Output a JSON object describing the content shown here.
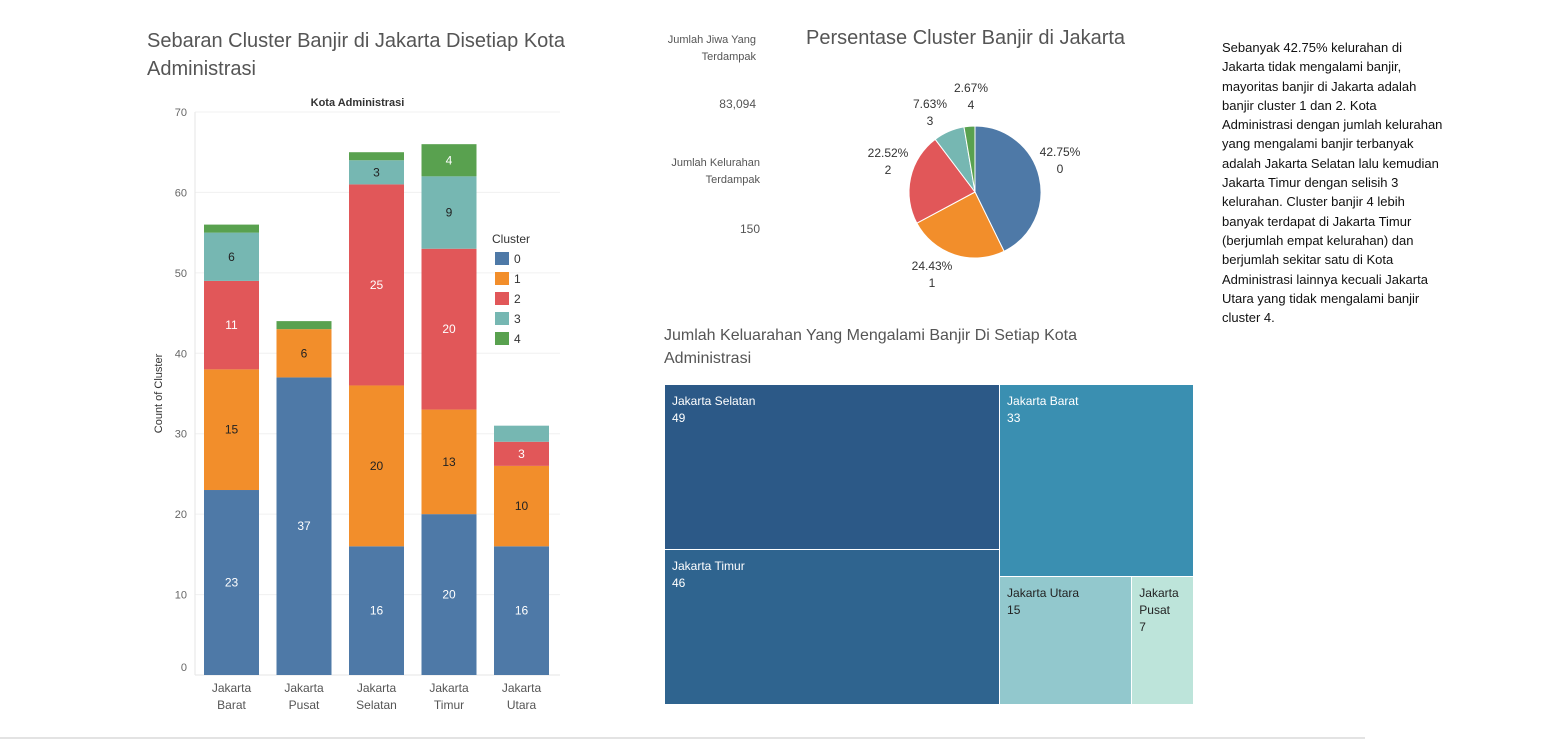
{
  "bar_title": "Sebaran Cluster Banjir di Jakarta Disetiap Kota Administrasi",
  "pie_title": "Persentase Cluster Banjir di Jakarta",
  "treemap_title": "Jumlah Keluarahan Yang Mengalami Banjir  Di Setiap Kota Administrasi",
  "kpis": {
    "jiwa_label": "Jumlah Jiwa Yang Terdampak",
    "jiwa_value": "83,094",
    "kelurahan_label": "Jumlah Kelurahan Terdampak",
    "kelurahan_value": "150"
  },
  "note": "Sebanyak 42.75% kelurahan di Jakarta tidak mengalami banjir, mayoritas banjir di Jakarta adalah banjir cluster 1 dan 2. Kota Administrasi dengan jumlah kelurahan yang mengalami banjir terbanyak adalah Jakarta Selatan lalu kemudian Jakarta Timur dengan selisih 3 kelurahan. Cluster banjir 4 lebih banyak terdapat di Jakarta Timur (berjumlah empat kelurahan) dan berjumlah sekitar satu di Kota Administrasi lainnya kecuali Jakarta Utara yang tidak mengalami banjir cluster 4.",
  "colors": {
    "0": "#4e79a7",
    "1": "#f28e2b",
    "2": "#e15759",
    "3": "#76b7b2",
    "4": "#59a14f"
  },
  "chart_data": [
    {
      "type": "bar",
      "stacked": true,
      "title": "Sebaran Cluster Banjir di Jakarta Disetiap Kota Administrasi",
      "header": "Kota Administrasi",
      "ylabel": "Count of Cluster",
      "ylim": [
        0,
        70
      ],
      "yticks": [
        0,
        10,
        20,
        30,
        40,
        50,
        60,
        70
      ],
      "legend_title": "Cluster",
      "legend_position": "right",
      "categories": [
        [
          "Jakarta",
          "Barat"
        ],
        [
          "Jakarta",
          "Pusat"
        ],
        [
          "Jakarta",
          "Selatan"
        ],
        [
          "Jakarta",
          "Timur"
        ],
        [
          "Jakarta",
          "Utara"
        ]
      ],
      "series": [
        {
          "name": "0",
          "values": [
            23,
            37,
            16,
            20,
            16
          ]
        },
        {
          "name": "1",
          "values": [
            15,
            6,
            20,
            13,
            10
          ]
        },
        {
          "name": "2",
          "values": [
            11,
            0,
            25,
            20,
            3
          ]
        },
        {
          "name": "3",
          "values": [
            6,
            0,
            3,
            9,
            2
          ]
        },
        {
          "name": "4",
          "values": [
            1,
            1,
            1,
            4,
            0
          ]
        }
      ],
      "labels": [
        [
          "23",
          "37",
          "16",
          "20",
          "16"
        ],
        [
          "15",
          "6",
          "20",
          "13",
          "10"
        ],
        [
          "11",
          "",
          "25",
          "20",
          "3"
        ],
        [
          "6",
          "",
          "3",
          "9",
          ""
        ],
        [
          "",
          "",
          "",
          "4",
          ""
        ]
      ]
    },
    {
      "type": "pie",
      "title": "Persentase Cluster Banjir di Jakarta",
      "slices": [
        {
          "cluster": "0",
          "percent": 42.75,
          "pct_label": "42.75%"
        },
        {
          "cluster": "1",
          "percent": 24.43,
          "pct_label": "24.43%"
        },
        {
          "cluster": "2",
          "percent": 22.52,
          "pct_label": "22.52%"
        },
        {
          "cluster": "3",
          "percent": 7.63,
          "pct_label": "7.63%"
        },
        {
          "cluster": "4",
          "percent": 2.67,
          "pct_label": "2.67%"
        }
      ]
    },
    {
      "type": "treemap",
      "title": "Jumlah Keluarahan Yang Mengalami Banjir  Di Setiap Kota Administrasi",
      "items": [
        {
          "name": "Jakarta Selatan",
          "value": 49,
          "color": "#2c5987",
          "text_color": "#ffffff"
        },
        {
          "name": "Jakarta Timur",
          "value": 46,
          "color": "#2f648f",
          "text_color": "#ffffff"
        },
        {
          "name": "Jakarta Barat",
          "value": 33,
          "color": "#3a8fb1",
          "text_color": "#ffffff"
        },
        {
          "name": "Jakarta Utara",
          "value": 15,
          "color": "#92c8cd",
          "text_color": "#222222"
        },
        {
          "name": "Jakarta Pusat",
          "value": 7,
          "color": "#bde4da",
          "text_color": "#222222"
        }
      ]
    }
  ]
}
